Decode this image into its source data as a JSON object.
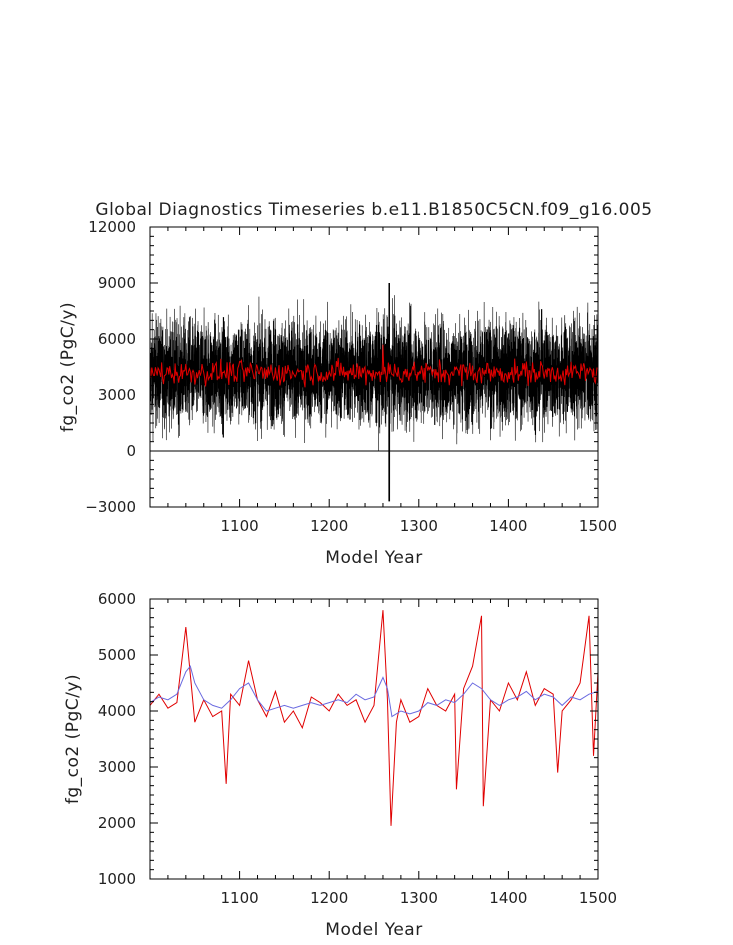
{
  "title": "Global Diagnostics Timeseries b.e11.B1850C5CN.f09_g16.005",
  "chart_data": [
    {
      "type": "line",
      "xlabel": "Model Year",
      "ylabel": "fg_co2 (PgC/y)",
      "xlim": [
        1000,
        1500
      ],
      "ylim": [
        -3000,
        12000
      ],
      "x_ticks": [
        "1100",
        "1200",
        "1300",
        "1400",
        "1500"
      ],
      "x_tick_values": [
        1100,
        1200,
        1300,
        1400,
        1500
      ],
      "y_ticks": [
        "-3000",
        "0",
        "3000",
        "6000",
        "9000",
        "12000"
      ],
      "y_tick_values": [
        -3000,
        0,
        3000,
        6000,
        9000,
        12000
      ],
      "zero_line": true,
      "grid": false,
      "series": [
        {
          "color": "#000000",
          "style": "monthly",
          "mean": 4200,
          "spread": 2000,
          "range": [
            -2700,
            10200
          ],
          "note_x": 1267
        },
        {
          "color": "#e00000",
          "style": "annual"
        }
      ]
    },
    {
      "type": "line",
      "xlabel": "Model Year",
      "ylabel": "fg_co2 (PgC/y)",
      "xlim": [
        1000,
        1500
      ],
      "ylim": [
        1000,
        6000
      ],
      "x_ticks": [
        "1100",
        "1200",
        "1300",
        "1400",
        "1500"
      ],
      "x_tick_values": [
        1100,
        1200,
        1300,
        1400,
        1500
      ],
      "y_ticks": [
        "1000",
        "2000",
        "3000",
        "4000",
        "5000",
        "6000"
      ],
      "y_tick_values": [
        1000,
        2000,
        3000,
        4000,
        5000,
        6000
      ],
      "grid": false,
      "series": [
        {
          "color": "#e00000",
          "style": "annual",
          "points": [
            [
              1000,
              4100
            ],
            [
              1010,
              4300
            ],
            [
              1020,
              4050
            ],
            [
              1030,
              4150
            ],
            [
              1040,
              5500
            ],
            [
              1050,
              3800
            ],
            [
              1060,
              4200
            ],
            [
              1070,
              3900
            ],
            [
              1080,
              4000
            ],
            [
              1085,
              2700
            ],
            [
              1090,
              4300
            ],
            [
              1100,
              4100
            ],
            [
              1110,
              4900
            ],
            [
              1120,
              4200
            ],
            [
              1130,
              3900
            ],
            [
              1140,
              4350
            ],
            [
              1150,
              3800
            ],
            [
              1160,
              4000
            ],
            [
              1170,
              3700
            ],
            [
              1180,
              4250
            ],
            [
              1190,
              4150
            ],
            [
              1200,
              4000
            ],
            [
              1210,
              4300
            ],
            [
              1220,
              4100
            ],
            [
              1230,
              4200
            ],
            [
              1240,
              3800
            ],
            [
              1250,
              4100
            ],
            [
              1260,
              5800
            ],
            [
              1265,
              4200
            ],
            [
              1269,
              1950
            ],
            [
              1275,
              3800
            ],
            [
              1280,
              4200
            ],
            [
              1290,
              3800
            ],
            [
              1300,
              3900
            ],
            [
              1310,
              4400
            ],
            [
              1320,
              4100
            ],
            [
              1330,
              4000
            ],
            [
              1340,
              4300
            ],
            [
              1342,
              2600
            ],
            [
              1350,
              4400
            ],
            [
              1360,
              4800
            ],
            [
              1370,
              5700
            ],
            [
              1372,
              2300
            ],
            [
              1380,
              4200
            ],
            [
              1390,
              4000
            ],
            [
              1400,
              4500
            ],
            [
              1410,
              4200
            ],
            [
              1420,
              4700
            ],
            [
              1430,
              4100
            ],
            [
              1440,
              4400
            ],
            [
              1450,
              4300
            ],
            [
              1455,
              2900
            ],
            [
              1460,
              4000
            ],
            [
              1470,
              4200
            ],
            [
              1480,
              4500
            ],
            [
              1490,
              5700
            ],
            [
              1495,
              3200
            ],
            [
              1500,
              4700
            ]
          ]
        },
        {
          "color": "#6a6ae0",
          "style": "smoothed",
          "points": [
            [
              1000,
              4150
            ],
            [
              1010,
              4250
            ],
            [
              1020,
              4200
            ],
            [
              1030,
              4300
            ],
            [
              1040,
              4700
            ],
            [
              1045,
              4800
            ],
            [
              1050,
              4500
            ],
            [
              1060,
              4200
            ],
            [
              1070,
              4100
            ],
            [
              1080,
              4050
            ],
            [
              1090,
              4200
            ],
            [
              1100,
              4400
            ],
            [
              1110,
              4500
            ],
            [
              1120,
              4200
            ],
            [
              1130,
              4000
            ],
            [
              1140,
              4050
            ],
            [
              1150,
              4100
            ],
            [
              1160,
              4050
            ],
            [
              1170,
              4100
            ],
            [
              1180,
              4150
            ],
            [
              1190,
              4100
            ],
            [
              1200,
              4150
            ],
            [
              1210,
              4200
            ],
            [
              1220,
              4150
            ],
            [
              1230,
              4300
            ],
            [
              1240,
              4200
            ],
            [
              1250,
              4250
            ],
            [
              1260,
              4600
            ],
            [
              1265,
              4400
            ],
            [
              1270,
              3900
            ],
            [
              1280,
              4000
            ],
            [
              1290,
              3950
            ],
            [
              1300,
              4000
            ],
            [
              1310,
              4150
            ],
            [
              1320,
              4100
            ],
            [
              1330,
              4200
            ],
            [
              1340,
              4150
            ],
            [
              1350,
              4300
            ],
            [
              1360,
              4500
            ],
            [
              1370,
              4400
            ],
            [
              1380,
              4200
            ],
            [
              1390,
              4100
            ],
            [
              1400,
              4200
            ],
            [
              1410,
              4250
            ],
            [
              1420,
              4350
            ],
            [
              1430,
              4200
            ],
            [
              1440,
              4300
            ],
            [
              1450,
              4250
            ],
            [
              1460,
              4100
            ],
            [
              1470,
              4250
            ],
            [
              1480,
              4200
            ],
            [
              1490,
              4300
            ],
            [
              1500,
              4350
            ]
          ]
        }
      ]
    }
  ]
}
